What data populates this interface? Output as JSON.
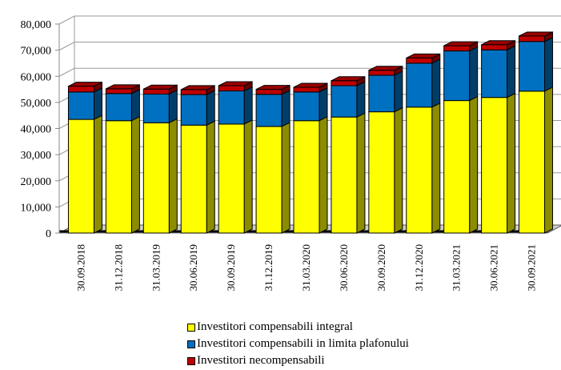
{
  "chart_data": {
    "type": "bar",
    "stacked": true,
    "three_d": true,
    "title": "",
    "xlabel": "",
    "ylabel": "",
    "ylim": [
      0,
      80000
    ],
    "yticks": [
      0,
      10000,
      20000,
      30000,
      40000,
      50000,
      60000,
      70000,
      80000
    ],
    "ytick_labels": [
      "0",
      "10,000",
      "20,000",
      "30,000",
      "40,000",
      "50,000",
      "60,000",
      "70,000",
      "80,000"
    ],
    "grid": true,
    "legend_position": "bottom",
    "categories": [
      "30.09.2018",
      "31.12.2018",
      "31.03.2019",
      "30.06.2019",
      "30.09.2019",
      "31.12.2019",
      "31.03.2020",
      "30.06.2020",
      "30.09.2020",
      "31.12.2020",
      "31.03.2021",
      "30.06.2021",
      "30.09.2021"
    ],
    "series": [
      {
        "name": "Investitori compensabili integral",
        "color": "#FFFF00",
        "values": [
          43500,
          43000,
          42200,
          41300,
          41700,
          40800,
          43000,
          44400,
          46400,
          48200,
          50700,
          51900,
          54300
        ]
      },
      {
        "name": "Investitori compensabili in limita plafonului",
        "color": "#0070C0",
        "values": [
          10500,
          10400,
          11000,
          11700,
          12700,
          12300,
          11000,
          12000,
          14000,
          16800,
          19000,
          18200,
          19000
        ]
      },
      {
        "name": "Investitori necompensabili",
        "color": "#C00000",
        "values": [
          2200,
          1800,
          1900,
          1900,
          2000,
          1900,
          1800,
          1900,
          1900,
          2000,
          2000,
          2000,
          2100
        ]
      }
    ]
  }
}
